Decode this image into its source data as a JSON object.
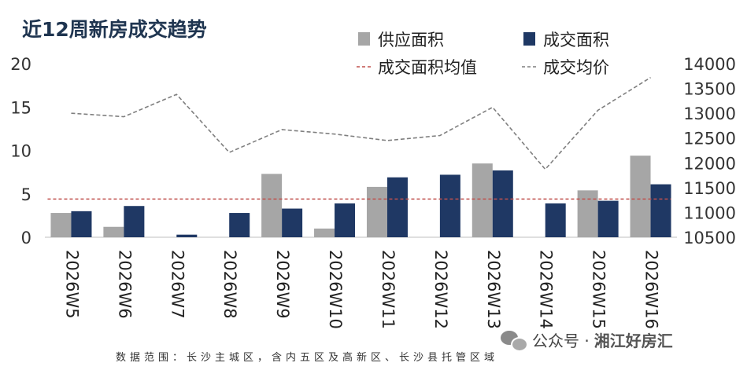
{
  "title": "近12周新房成交趋势",
  "footer_note": "数据范围：长沙主城区，含内五区及高新区、长沙县托管区域",
  "wechat": {
    "label": "公众号 · ",
    "account": "湘江好房汇",
    "icon": "wechat-icon"
  },
  "colors": {
    "supply": "#a6a6a6",
    "transaction": "#1f3864",
    "avg_line": "#c0504d",
    "price_line": "#7f7f7f",
    "title": "#1f3550"
  },
  "chart_data": {
    "type": "bar",
    "categories": [
      "2026W5",
      "2026W6",
      "2026W7",
      "2026W8",
      "2026W9",
      "2026W10",
      "2026W11",
      "2026W12",
      "2026W13",
      "2026W14",
      "2026W15",
      "2026W16"
    ],
    "series": [
      {
        "name": "供应面积",
        "kind": "bar",
        "axis": "left",
        "values": [
          2.8,
          1.2,
          0,
          0,
          7.3,
          1.0,
          5.8,
          0,
          8.5,
          0,
          5.4,
          9.4
        ]
      },
      {
        "name": "成交面积",
        "kind": "bar",
        "axis": "left",
        "values": [
          3.0,
          3.6,
          0.3,
          2.8,
          3.3,
          3.9,
          6.9,
          7.2,
          7.7,
          3.9,
          4.2,
          6.1
        ]
      },
      {
        "name": "成交面积均值",
        "kind": "line",
        "style": "dashed",
        "axis": "left",
        "values": [
          4.4,
          4.4,
          4.4,
          4.4,
          4.4,
          4.4,
          4.4,
          4.4,
          4.4,
          4.4,
          4.4,
          4.4
        ]
      },
      {
        "name": "成交均价",
        "kind": "line",
        "style": "dashed",
        "axis": "right",
        "values": [
          13000,
          12930,
          13380,
          12210,
          12670,
          12580,
          12450,
          12550,
          13120,
          11870,
          13060,
          13720
        ]
      }
    ],
    "left_axis": {
      "ylim": [
        0,
        20
      ],
      "ticks": [
        "0",
        "5",
        "10",
        "15",
        "20"
      ]
    },
    "right_axis": {
      "ylim": [
        10500,
        14000
      ],
      "ticks": [
        "10500",
        "11000",
        "11500",
        "12000",
        "12500",
        "13000",
        "13500",
        "14000"
      ]
    },
    "grid": false,
    "legend_position": "top-right",
    "xlabel": "",
    "ylabel": ""
  }
}
